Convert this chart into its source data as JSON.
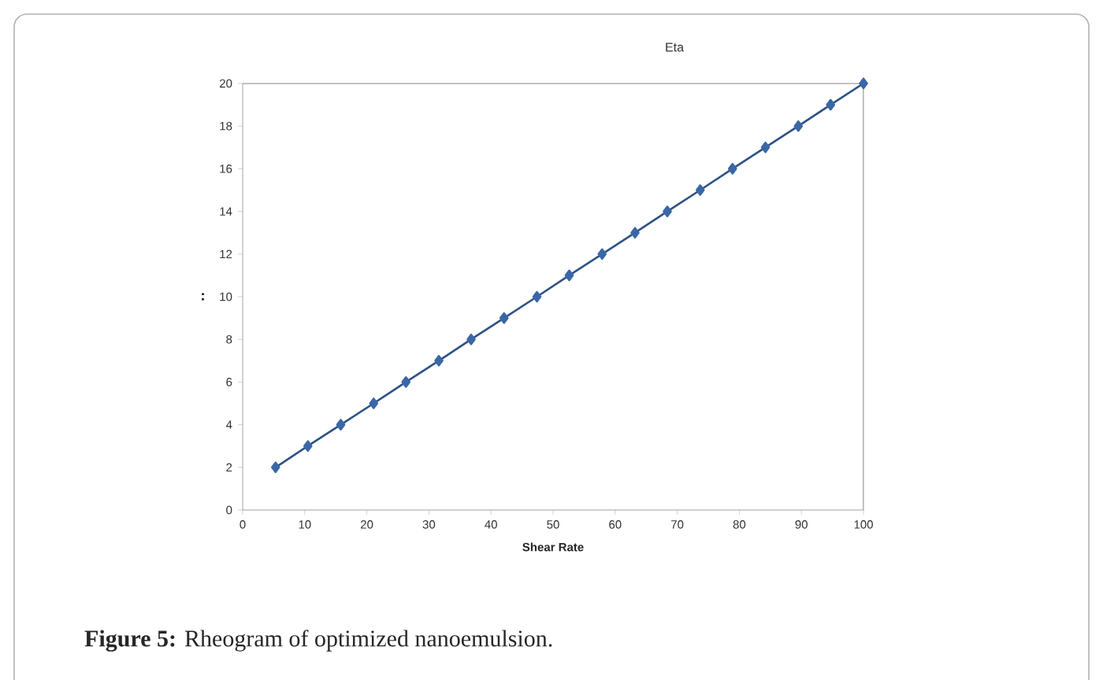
{
  "chart_data": {
    "type": "line",
    "title": "Eta",
    "xlabel": "Shear Rate",
    "ylabel": ":",
    "x": [
      5.3,
      10.5,
      15.8,
      21.1,
      26.3,
      31.6,
      36.8,
      42.1,
      47.4,
      52.6,
      57.9,
      63.2,
      68.4,
      73.7,
      78.9,
      84.2,
      89.5,
      94.7,
      100
    ],
    "series": [
      {
        "color": "#3a67a6",
        "values": [
          2,
          3,
          4,
          5,
          6,
          7,
          8,
          9,
          10,
          11,
          12,
          13,
          14,
          15,
          16,
          17,
          18,
          19,
          20
        ]
      }
    ],
    "xlim": [
      0,
      100
    ],
    "xticks": [
      0,
      10,
      20,
      30,
      40,
      50,
      60,
      70,
      80,
      90,
      100
    ],
    "ylim": [
      0,
      20
    ],
    "yticks": [
      0,
      2,
      4,
      6,
      8,
      10,
      12,
      14,
      16,
      18,
      20
    ],
    "marker": "diamond",
    "line_style": "solid",
    "grid": false,
    "annotations": [
      "**Figure 5:** Rheogram of optimized nanoemulsion."
    ]
  }
}
